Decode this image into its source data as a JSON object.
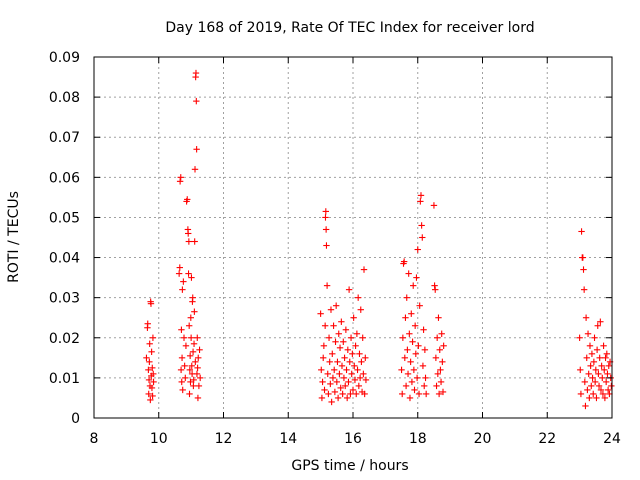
{
  "chart_data": {
    "type": "scatter",
    "title": "Day 168 of 2019, Rate Of TEC Index for receiver lord",
    "xlabel": "GPS time / hours",
    "ylabel": "ROTI / TECUs",
    "xlim": [
      8,
      24
    ],
    "ylim": [
      0,
      0.09
    ],
    "xticks": [
      8,
      10,
      12,
      14,
      16,
      18,
      20,
      22,
      24
    ],
    "yticks": [
      0,
      0.01,
      0.02,
      0.03,
      0.04,
      0.05,
      0.06,
      0.07,
      0.08,
      0.09
    ],
    "xtick_labels": [
      "8",
      "10",
      "12",
      "14",
      "16",
      "18",
      "20",
      "22",
      "24"
    ],
    "ytick_labels": [
      "0",
      "0.01",
      "0.02",
      "0.03",
      "0.04",
      "0.05",
      "0.06",
      "0.07",
      "0.08",
      "0.09"
    ],
    "grid": true,
    "marker": "+",
    "color": "#ff0000",
    "series": [
      {
        "name": "ROTI",
        "points": [
          [
            9.62,
            0.015
          ],
          [
            9.65,
            0.0225
          ],
          [
            9.66,
            0.0235
          ],
          [
            9.68,
            0.012
          ],
          [
            9.69,
            0.006
          ],
          [
            9.7,
            0.0095
          ],
          [
            9.71,
            0.014
          ],
          [
            9.72,
            0.0185
          ],
          [
            9.73,
            0.008
          ],
          [
            9.74,
            0.0045
          ],
          [
            9.75,
            0.029
          ],
          [
            9.76,
            0.0285
          ],
          [
            9.77,
            0.0105
          ],
          [
            9.78,
            0.0165
          ],
          [
            9.79,
            0.0075
          ],
          [
            9.8,
            0.0125
          ],
          [
            9.81,
            0.0055
          ],
          [
            9.82,
            0.02
          ],
          [
            9.83,
            0.011
          ],
          [
            9.84,
            0.009
          ],
          [
            10.63,
            0.036
          ],
          [
            10.65,
            0.0375
          ],
          [
            10.66,
            0.059
          ],
          [
            10.68,
            0.06
          ],
          [
            10.69,
            0.012
          ],
          [
            10.7,
            0.022
          ],
          [
            10.71,
            0.009
          ],
          [
            10.72,
            0.015
          ],
          [
            10.73,
            0.032
          ],
          [
            10.74,
            0.007
          ],
          [
            10.76,
            0.034
          ],
          [
            10.78,
            0.02
          ],
          [
            10.8,
            0.013
          ],
          [
            10.82,
            0.01
          ],
          [
            10.84,
            0.018
          ],
          [
            10.86,
            0.054
          ],
          [
            10.88,
            0.0545
          ],
          [
            10.9,
            0.047
          ],
          [
            10.91,
            0.046
          ],
          [
            10.92,
            0.036
          ],
          [
            10.93,
            0.044
          ],
          [
            10.94,
            0.023
          ],
          [
            10.95,
            0.006
          ],
          [
            10.96,
            0.012
          ],
          [
            10.97,
            0.0155
          ],
          [
            10.98,
            0.009
          ],
          [
            10.99,
            0.025
          ],
          [
            11.0,
            0.02
          ],
          [
            11.01,
            0.035
          ],
          [
            11.02,
            0.013
          ],
          [
            11.03,
            0.011
          ],
          [
            11.04,
            0.029
          ],
          [
            11.05,
            0.03
          ],
          [
            11.06,
            0.0165
          ],
          [
            11.07,
            0.008
          ],
          [
            11.08,
            0.0095
          ],
          [
            11.09,
            0.0185
          ],
          [
            11.1,
            0.0265
          ],
          [
            11.11,
            0.044
          ],
          [
            11.12,
            0.062
          ],
          [
            11.13,
            0.014
          ],
          [
            11.14,
            0.085
          ],
          [
            11.15,
            0.086
          ],
          [
            11.16,
            0.079
          ],
          [
            11.17,
            0.067
          ],
          [
            11.18,
            0.011
          ],
          [
            11.19,
            0.02
          ],
          [
            11.2,
            0.0125
          ],
          [
            11.21,
            0.005
          ],
          [
            11.22,
            0.015
          ],
          [
            11.24,
            0.008
          ],
          [
            11.26,
            0.017
          ],
          [
            11.28,
            0.01
          ],
          [
            15.0,
            0.026
          ],
          [
            15.02,
            0.012
          ],
          [
            15.04,
            0.005
          ],
          [
            15.06,
            0.009
          ],
          [
            15.08,
            0.015
          ],
          [
            15.1,
            0.018
          ],
          [
            15.12,
            0.007
          ],
          [
            15.14,
            0.023
          ],
          [
            15.15,
            0.05
          ],
          [
            15.16,
            0.0515
          ],
          [
            15.17,
            0.047
          ],
          [
            15.18,
            0.043
          ],
          [
            15.2,
            0.033
          ],
          [
            15.22,
            0.011
          ],
          [
            15.24,
            0.006
          ],
          [
            15.26,
            0.02
          ],
          [
            15.28,
            0.014
          ],
          [
            15.3,
            0.0085
          ],
          [
            15.32,
            0.027
          ],
          [
            15.34,
            0.004
          ],
          [
            15.36,
            0.016
          ],
          [
            15.38,
            0.01
          ],
          [
            15.4,
            0.023
          ],
          [
            15.42,
            0.012
          ],
          [
            15.44,
            0.0065
          ],
          [
            15.46,
            0.019
          ],
          [
            15.48,
            0.028
          ],
          [
            15.5,
            0.009
          ],
          [
            15.52,
            0.014
          ],
          [
            15.54,
            0.005
          ],
          [
            15.56,
            0.021
          ],
          [
            15.58,
            0.011
          ],
          [
            15.6,
            0.0175
          ],
          [
            15.62,
            0.0075
          ],
          [
            15.64,
            0.024
          ],
          [
            15.66,
            0.013
          ],
          [
            15.68,
            0.006
          ],
          [
            15.7,
            0.019
          ],
          [
            15.72,
            0.01
          ],
          [
            15.74,
            0.015
          ],
          [
            15.76,
            0.008
          ],
          [
            15.78,
            0.022
          ],
          [
            15.8,
            0.012
          ],
          [
            15.82,
            0.005
          ],
          [
            15.84,
            0.017
          ],
          [
            15.86,
            0.009
          ],
          [
            15.88,
            0.032
          ],
          [
            15.9,
            0.014
          ],
          [
            15.92,
            0.006
          ],
          [
            15.94,
            0.02
          ],
          [
            15.96,
            0.011
          ],
          [
            15.98,
            0.016
          ],
          [
            16.0,
            0.007
          ],
          [
            16.02,
            0.025
          ],
          [
            16.04,
            0.013
          ],
          [
            16.06,
            0.0095
          ],
          [
            16.08,
            0.018
          ],
          [
            16.1,
            0.006
          ],
          [
            16.12,
            0.021
          ],
          [
            16.14,
            0.012
          ],
          [
            16.16,
            0.03
          ],
          [
            16.18,
            0.008
          ],
          [
            16.2,
            0.016
          ],
          [
            16.22,
            0.01
          ],
          [
            16.24,
            0.027
          ],
          [
            16.26,
            0.014
          ],
          [
            16.28,
            0.0065
          ],
          [
            16.3,
            0.02
          ],
          [
            16.32,
            0.011
          ],
          [
            16.34,
            0.037
          ],
          [
            16.36,
            0.006
          ],
          [
            16.38,
            0.015
          ],
          [
            16.4,
            0.0095
          ],
          [
            17.5,
            0.012
          ],
          [
            17.52,
            0.006
          ],
          [
            17.54,
            0.02
          ],
          [
            17.56,
            0.0385
          ],
          [
            17.58,
            0.039
          ],
          [
            17.6,
            0.015
          ],
          [
            17.62,
            0.025
          ],
          [
            17.64,
            0.008
          ],
          [
            17.66,
            0.03
          ],
          [
            17.68,
            0.017
          ],
          [
            17.7,
            0.011
          ],
          [
            17.72,
            0.036
          ],
          [
            17.74,
            0.021
          ],
          [
            17.76,
            0.005
          ],
          [
            17.78,
            0.014
          ],
          [
            17.8,
            0.026
          ],
          [
            17.82,
            0.009
          ],
          [
            17.84,
            0.019
          ],
          [
            17.86,
            0.033
          ],
          [
            17.88,
            0.012
          ],
          [
            17.9,
            0.007
          ],
          [
            17.92,
            0.023
          ],
          [
            17.94,
            0.016
          ],
          [
            17.96,
            0.035
          ],
          [
            17.98,
            0.01
          ],
          [
            18.0,
            0.042
          ],
          [
            18.02,
            0.018
          ],
          [
            18.04,
            0.006
          ],
          [
            18.06,
            0.028
          ],
          [
            18.08,
            0.054
          ],
          [
            18.1,
            0.0555
          ],
          [
            18.12,
            0.048
          ],
          [
            18.14,
            0.045
          ],
          [
            18.16,
            0.013
          ],
          [
            18.18,
            0.022
          ],
          [
            18.2,
            0.008
          ],
          [
            18.22,
            0.017
          ],
          [
            18.24,
            0.01
          ],
          [
            18.26,
            0.006
          ],
          [
            18.5,
            0.053
          ],
          [
            18.52,
            0.033
          ],
          [
            18.54,
            0.032
          ],
          [
            18.56,
            0.015
          ],
          [
            18.58,
            0.008
          ],
          [
            18.6,
            0.02
          ],
          [
            18.62,
            0.011
          ],
          [
            18.64,
            0.025
          ],
          [
            18.66,
            0.006
          ],
          [
            18.68,
            0.017
          ],
          [
            18.7,
            0.012
          ],
          [
            18.72,
            0.009
          ],
          [
            18.74,
            0.021
          ],
          [
            18.76,
            0.014
          ],
          [
            18.78,
            0.0065
          ],
          [
            18.8,
            0.018
          ],
          [
            23.0,
            0.02
          ],
          [
            23.02,
            0.012
          ],
          [
            23.04,
            0.006
          ],
          [
            23.06,
            0.0465
          ],
          [
            23.08,
            0.04
          ],
          [
            23.1,
            0.04
          ],
          [
            23.12,
            0.037
          ],
          [
            23.14,
            0.032
          ],
          [
            23.16,
            0.009
          ],
          [
            23.18,
            0.003
          ],
          [
            23.2,
            0.025
          ],
          [
            23.22,
            0.015
          ],
          [
            23.24,
            0.007
          ],
          [
            23.26,
            0.021
          ],
          [
            23.28,
            0.011
          ],
          [
            23.3,
            0.005
          ],
          [
            23.32,
            0.018
          ],
          [
            23.34,
            0.013
          ],
          [
            23.36,
            0.008
          ],
          [
            23.38,
            0.016
          ],
          [
            23.4,
            0.01
          ],
          [
            23.42,
            0.006
          ],
          [
            23.44,
            0.014
          ],
          [
            23.46,
            0.02
          ],
          [
            23.48,
            0.009
          ],
          [
            23.5,
            0.012
          ],
          [
            23.52,
            0.005
          ],
          [
            23.54,
            0.017
          ],
          [
            23.56,
            0.023
          ],
          [
            23.58,
            0.011
          ],
          [
            23.6,
            0.008
          ],
          [
            23.62,
            0.015
          ],
          [
            23.64,
            0.024
          ],
          [
            23.66,
            0.007
          ],
          [
            23.68,
            0.013
          ],
          [
            23.7,
            0.01
          ],
          [
            23.72,
            0.006
          ],
          [
            23.74,
            0.018
          ],
          [
            23.76,
            0.012
          ],
          [
            23.78,
            0.005
          ],
          [
            23.8,
            0.015
          ],
          [
            23.82,
            0.009
          ],
          [
            23.84,
            0.016
          ],
          [
            23.86,
            0.011
          ],
          [
            23.88,
            0.007
          ],
          [
            23.9,
            0.013
          ],
          [
            23.92,
            0.006
          ],
          [
            23.94,
            0.014
          ],
          [
            23.96,
            0.01
          ],
          [
            23.98,
            0.008
          ]
        ]
      }
    ]
  }
}
